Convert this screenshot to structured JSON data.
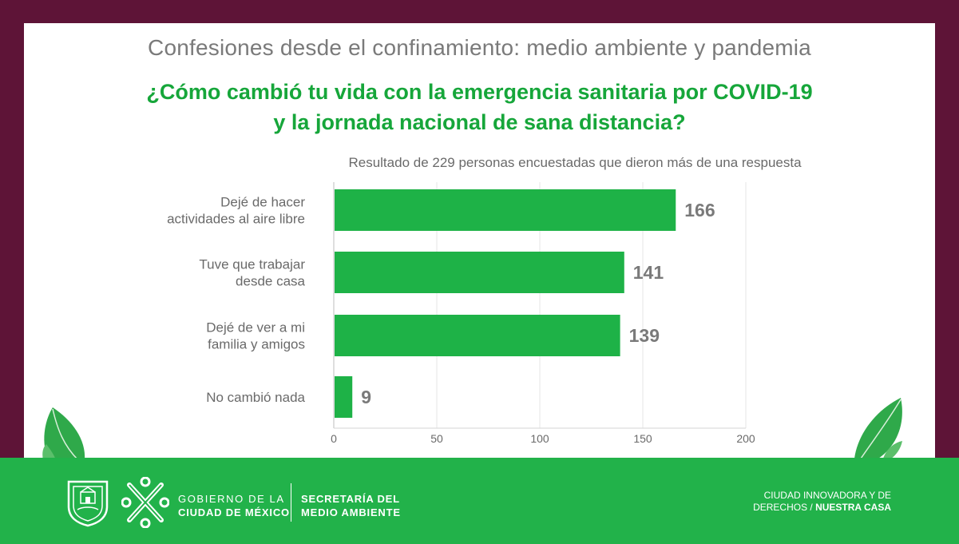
{
  "header": {
    "title": "Confesiones desde el confinamiento: medio ambiente y pandemia",
    "question_line1": "¿Cómo cambió tu vida con la emergencia sanitaria por COVID-19",
    "question_line2": "y la jornada nacional de sana distancia?"
  },
  "chart_data": {
    "type": "bar",
    "orientation": "horizontal",
    "title": "Resultado de 229 personas encuestadas que dieron más de una respuesta",
    "categories": [
      [
        "Dejé de hacer",
        "actividades al aire libre"
      ],
      [
        "Tuve que trabajar",
        "desde casa"
      ],
      [
        "Dejé de ver a mi",
        "familia y amigos"
      ],
      [
        "No cambió nada"
      ]
    ],
    "values": [
      166,
      141,
      139,
      9
    ],
    "value_labels": [
      "166",
      "141",
      "139",
      "9"
    ],
    "xlim": [
      0,
      200
    ],
    "xticks": [
      0,
      50,
      100,
      150,
      200
    ],
    "xtick_labels": [
      "0",
      "50",
      "100",
      "150",
      "200"
    ],
    "grid": true,
    "bar_color": "#1eb247"
  },
  "footer": {
    "gov_line1": "GOBIERNO DE LA",
    "gov_line2": "CIUDAD DE MÉXICO",
    "sec_line1": "SECRETARÍA DEL",
    "sec_line2": "MEDIO AMBIENTE",
    "slogan_line1": "CIUDAD INNOVADORA Y DE",
    "slogan_line2_prefix": "DERECHOS / ",
    "slogan_line2_bold": "NUESTRA CASA"
  },
  "colors": {
    "border": "#5e1437",
    "accent_green": "#16a63a",
    "footer_green": "#22b24a",
    "bar_green": "#1eb247",
    "label_gray": "#6a6a6a"
  }
}
